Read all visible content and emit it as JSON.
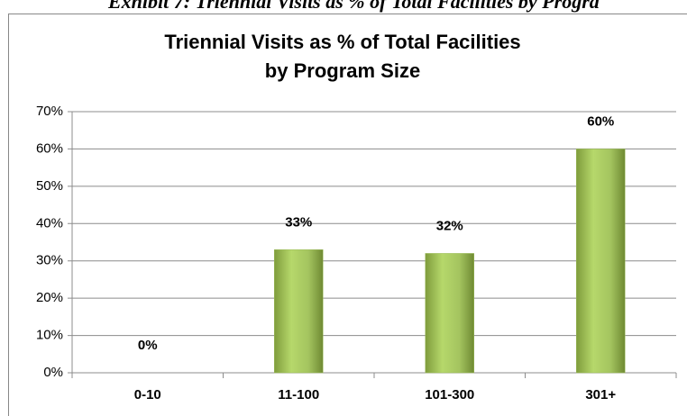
{
  "header": {
    "text": "Exhibit 7: Triennial Visits as % of Total Facilities by Progra"
  },
  "chart_data": {
    "type": "bar",
    "title": [
      "Triennial Visits as % of Total Facilities",
      "by Program Size"
    ],
    "categories": [
      "0-10",
      "11-100",
      "101-300",
      "301+"
    ],
    "values": [
      0,
      33,
      32,
      60
    ],
    "value_labels": [
      "0%",
      "33%",
      "32%",
      "60%"
    ],
    "color": "#9bbb59",
    "ylim": [
      0,
      70
    ],
    "yticks": [
      {
        "value": 0,
        "label": "0%"
      },
      {
        "value": 10,
        "label": "10%"
      },
      {
        "value": 20,
        "label": "20%"
      },
      {
        "value": 30,
        "label": "30%"
      },
      {
        "value": 40,
        "label": "40%"
      },
      {
        "value": 50,
        "label": "50%"
      },
      {
        "value": 60,
        "label": "60%"
      },
      {
        "value": 70,
        "label": "70%"
      }
    ],
    "grid": true
  }
}
